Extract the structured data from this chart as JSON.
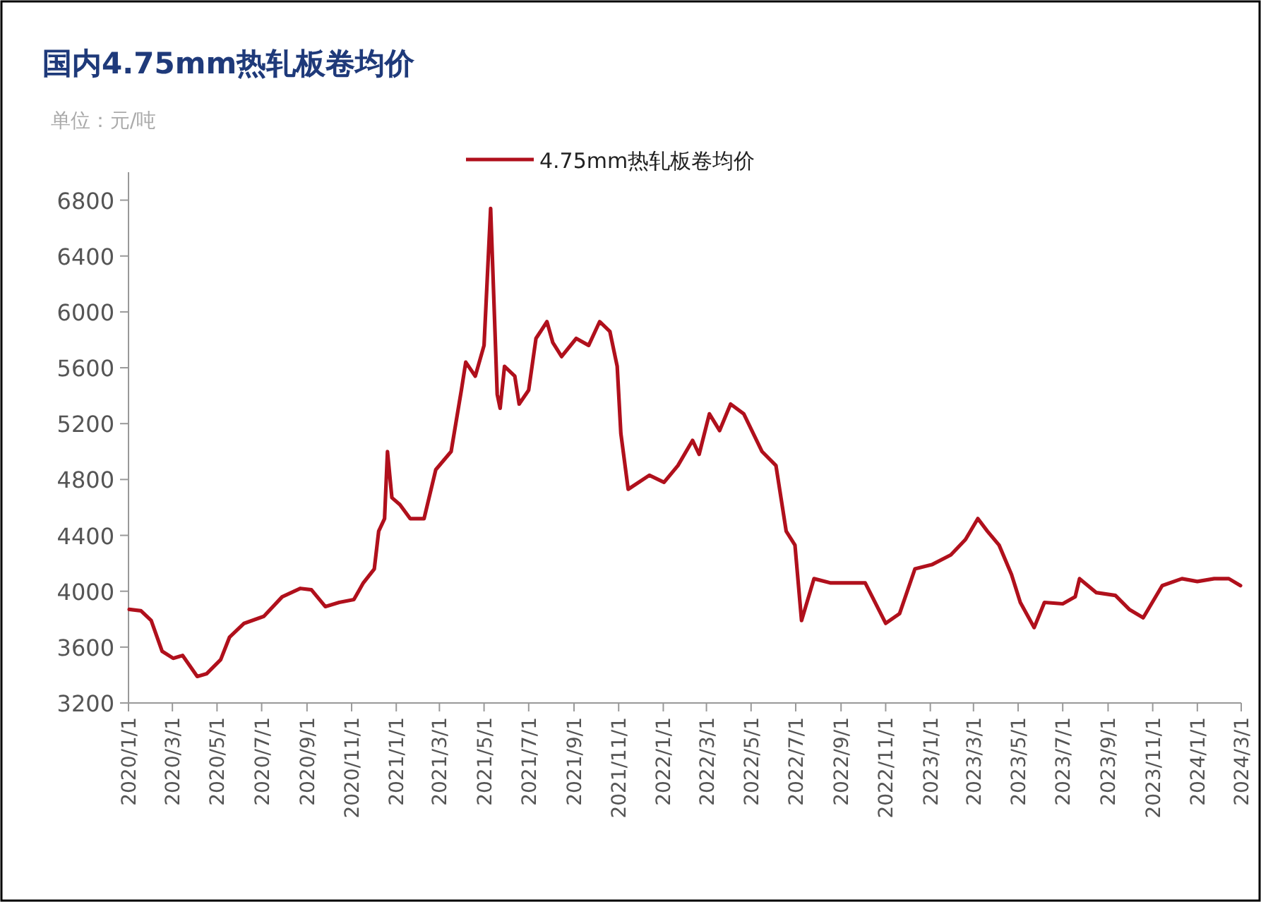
{
  "chart_data": {
    "type": "line",
    "title": "国内4.75mm热轧板卷均价",
    "subtitle": "单位：元/吨",
    "legend": "top",
    "x": [
      "2020-01-02",
      "2020-01-18",
      "2020-02-01",
      "2020-02-16",
      "2020-03-02",
      "2020-03-15",
      "2020-04-04",
      "2020-04-17",
      "2020-05-06",
      "2020-05-18",
      "2020-06-07",
      "2020-07-04",
      "2020-07-29",
      "2020-08-23",
      "2020-09-07",
      "2020-09-26",
      "2020-10-15",
      "2020-11-04",
      "2020-11-17",
      "2020-12-02",
      "2020-12-08",
      "2020-12-16",
      "2020-12-20",
      "2020-12-26",
      "2021-01-06",
      "2021-01-20",
      "2021-02-08",
      "2021-02-24",
      "2021-03-17",
      "2021-03-31",
      "2021-04-06",
      "2021-04-19",
      "2021-05-01",
      "2021-05-10",
      "2021-05-19",
      "2021-05-23",
      "2021-05-29",
      "2021-06-12",
      "2021-06-18",
      "2021-07-01",
      "2021-07-11",
      "2021-07-26",
      "2021-08-03",
      "2021-08-15",
      "2021-09-04",
      "2021-09-21",
      "2021-10-06",
      "2021-10-20",
      "2021-10-30",
      "2021-11-04",
      "2021-11-14",
      "2021-12-13",
      "2022-01-02",
      "2022-01-21",
      "2022-02-10",
      "2022-02-19",
      "2022-03-05",
      "2022-03-19",
      "2022-04-03",
      "2022-04-21",
      "2022-05-16",
      "2022-06-04",
      "2022-06-18",
      "2022-06-30",
      "2022-07-09",
      "2022-07-26",
      "2022-08-17",
      "2022-09-10",
      "2022-10-04",
      "2022-11-01",
      "2022-11-20",
      "2022-12-11",
      "2023-01-03",
      "2023-01-29",
      "2023-02-18",
      "2023-03-07",
      "2023-03-20",
      "2023-04-05",
      "2023-04-22",
      "2023-05-04",
      "2023-05-23",
      "2023-06-06",
      "2023-07-01",
      "2023-07-18",
      "2023-07-24",
      "2023-08-16",
      "2023-09-11",
      "2023-09-30",
      "2023-10-19",
      "2023-11-14",
      "2023-12-11",
      "2024-01-01",
      "2024-01-24",
      "2024-02-13",
      "2024-02-29"
    ],
    "series": [
      {
        "name": "4.75mm热轧板卷均价",
        "color": "#b0101c",
        "values": [
          3870,
          3860,
          3790,
          3570,
          3520,
          3540,
          3390,
          3410,
          3510,
          3670,
          3770,
          3820,
          3960,
          4020,
          4010,
          3890,
          3920,
          3940,
          4060,
          4160,
          4430,
          4520,
          5000,
          4670,
          4620,
          4520,
          4520,
          4870,
          5000,
          5440,
          5640,
          5540,
          5760,
          6740,
          5410,
          5310,
          5610,
          5540,
          5340,
          5440,
          5810,
          5930,
          5780,
          5680,
          5810,
          5760,
          5930,
          5860,
          5610,
          5130,
          4730,
          4830,
          4780,
          4900,
          5080,
          4980,
          5270,
          5150,
          5340,
          5270,
          5000,
          4900,
          4430,
          4330,
          3790,
          4090,
          4060,
          4060,
          4060,
          3770,
          3840,
          4160,
          4190,
          4260,
          4370,
          4520,
          4430,
          4330,
          4120,
          3920,
          3740,
          3920,
          3910,
          3960,
          4090,
          3990,
          3970,
          3870,
          3810,
          4040,
          4090,
          4070,
          4090,
          4090,
          4040
        ]
      }
    ],
    "xlim": [
      "2020-01-01",
      "2024-03-01"
    ],
    "xticks": [
      {
        "value": "2020-01-01",
        "label": "2020/1/1"
      },
      {
        "value": "2020-03-01",
        "label": "2020/3/1"
      },
      {
        "value": "2020-05-01",
        "label": "2020/5/1"
      },
      {
        "value": "2020-07-01",
        "label": "2020/7/1"
      },
      {
        "value": "2020-09-01",
        "label": "2020/9/1"
      },
      {
        "value": "2020-11-01",
        "label": "2020/11/1"
      },
      {
        "value": "2021-01-01",
        "label": "2021/1/1"
      },
      {
        "value": "2021-03-01",
        "label": "2021/3/1"
      },
      {
        "value": "2021-05-01",
        "label": "2021/5/1"
      },
      {
        "value": "2021-07-01",
        "label": "2021/7/1"
      },
      {
        "value": "2021-09-01",
        "label": "2021/9/1"
      },
      {
        "value": "2021-11-01",
        "label": "2021/11/1"
      },
      {
        "value": "2022-01-01",
        "label": "2022/1/1"
      },
      {
        "value": "2022-03-01",
        "label": "2022/3/1"
      },
      {
        "value": "2022-05-01",
        "label": "2022/5/1"
      },
      {
        "value": "2022-07-01",
        "label": "2022/7/1"
      },
      {
        "value": "2022-09-01",
        "label": "2022/9/1"
      },
      {
        "value": "2022-11-01",
        "label": "2022/11/1"
      },
      {
        "value": "2023-01-01",
        "label": "2023/1/1"
      },
      {
        "value": "2023-03-01",
        "label": "2023/3/1"
      },
      {
        "value": "2023-05-01",
        "label": "2023/5/1"
      },
      {
        "value": "2023-07-01",
        "label": "2023/7/1"
      },
      {
        "value": "2023-09-01",
        "label": "2023/9/1"
      },
      {
        "value": "2023-11-01",
        "label": "2023/11/1"
      },
      {
        "value": "2024-01-01",
        "label": "2024/1/1"
      },
      {
        "value": "2024-03-01",
        "label": "2024/3/1"
      }
    ],
    "ylim": [
      3200,
      7000
    ],
    "yticks": [
      3200,
      3600,
      4000,
      4400,
      4800,
      5200,
      5600,
      6000,
      6400,
      6800
    ],
    "grid": false
  }
}
